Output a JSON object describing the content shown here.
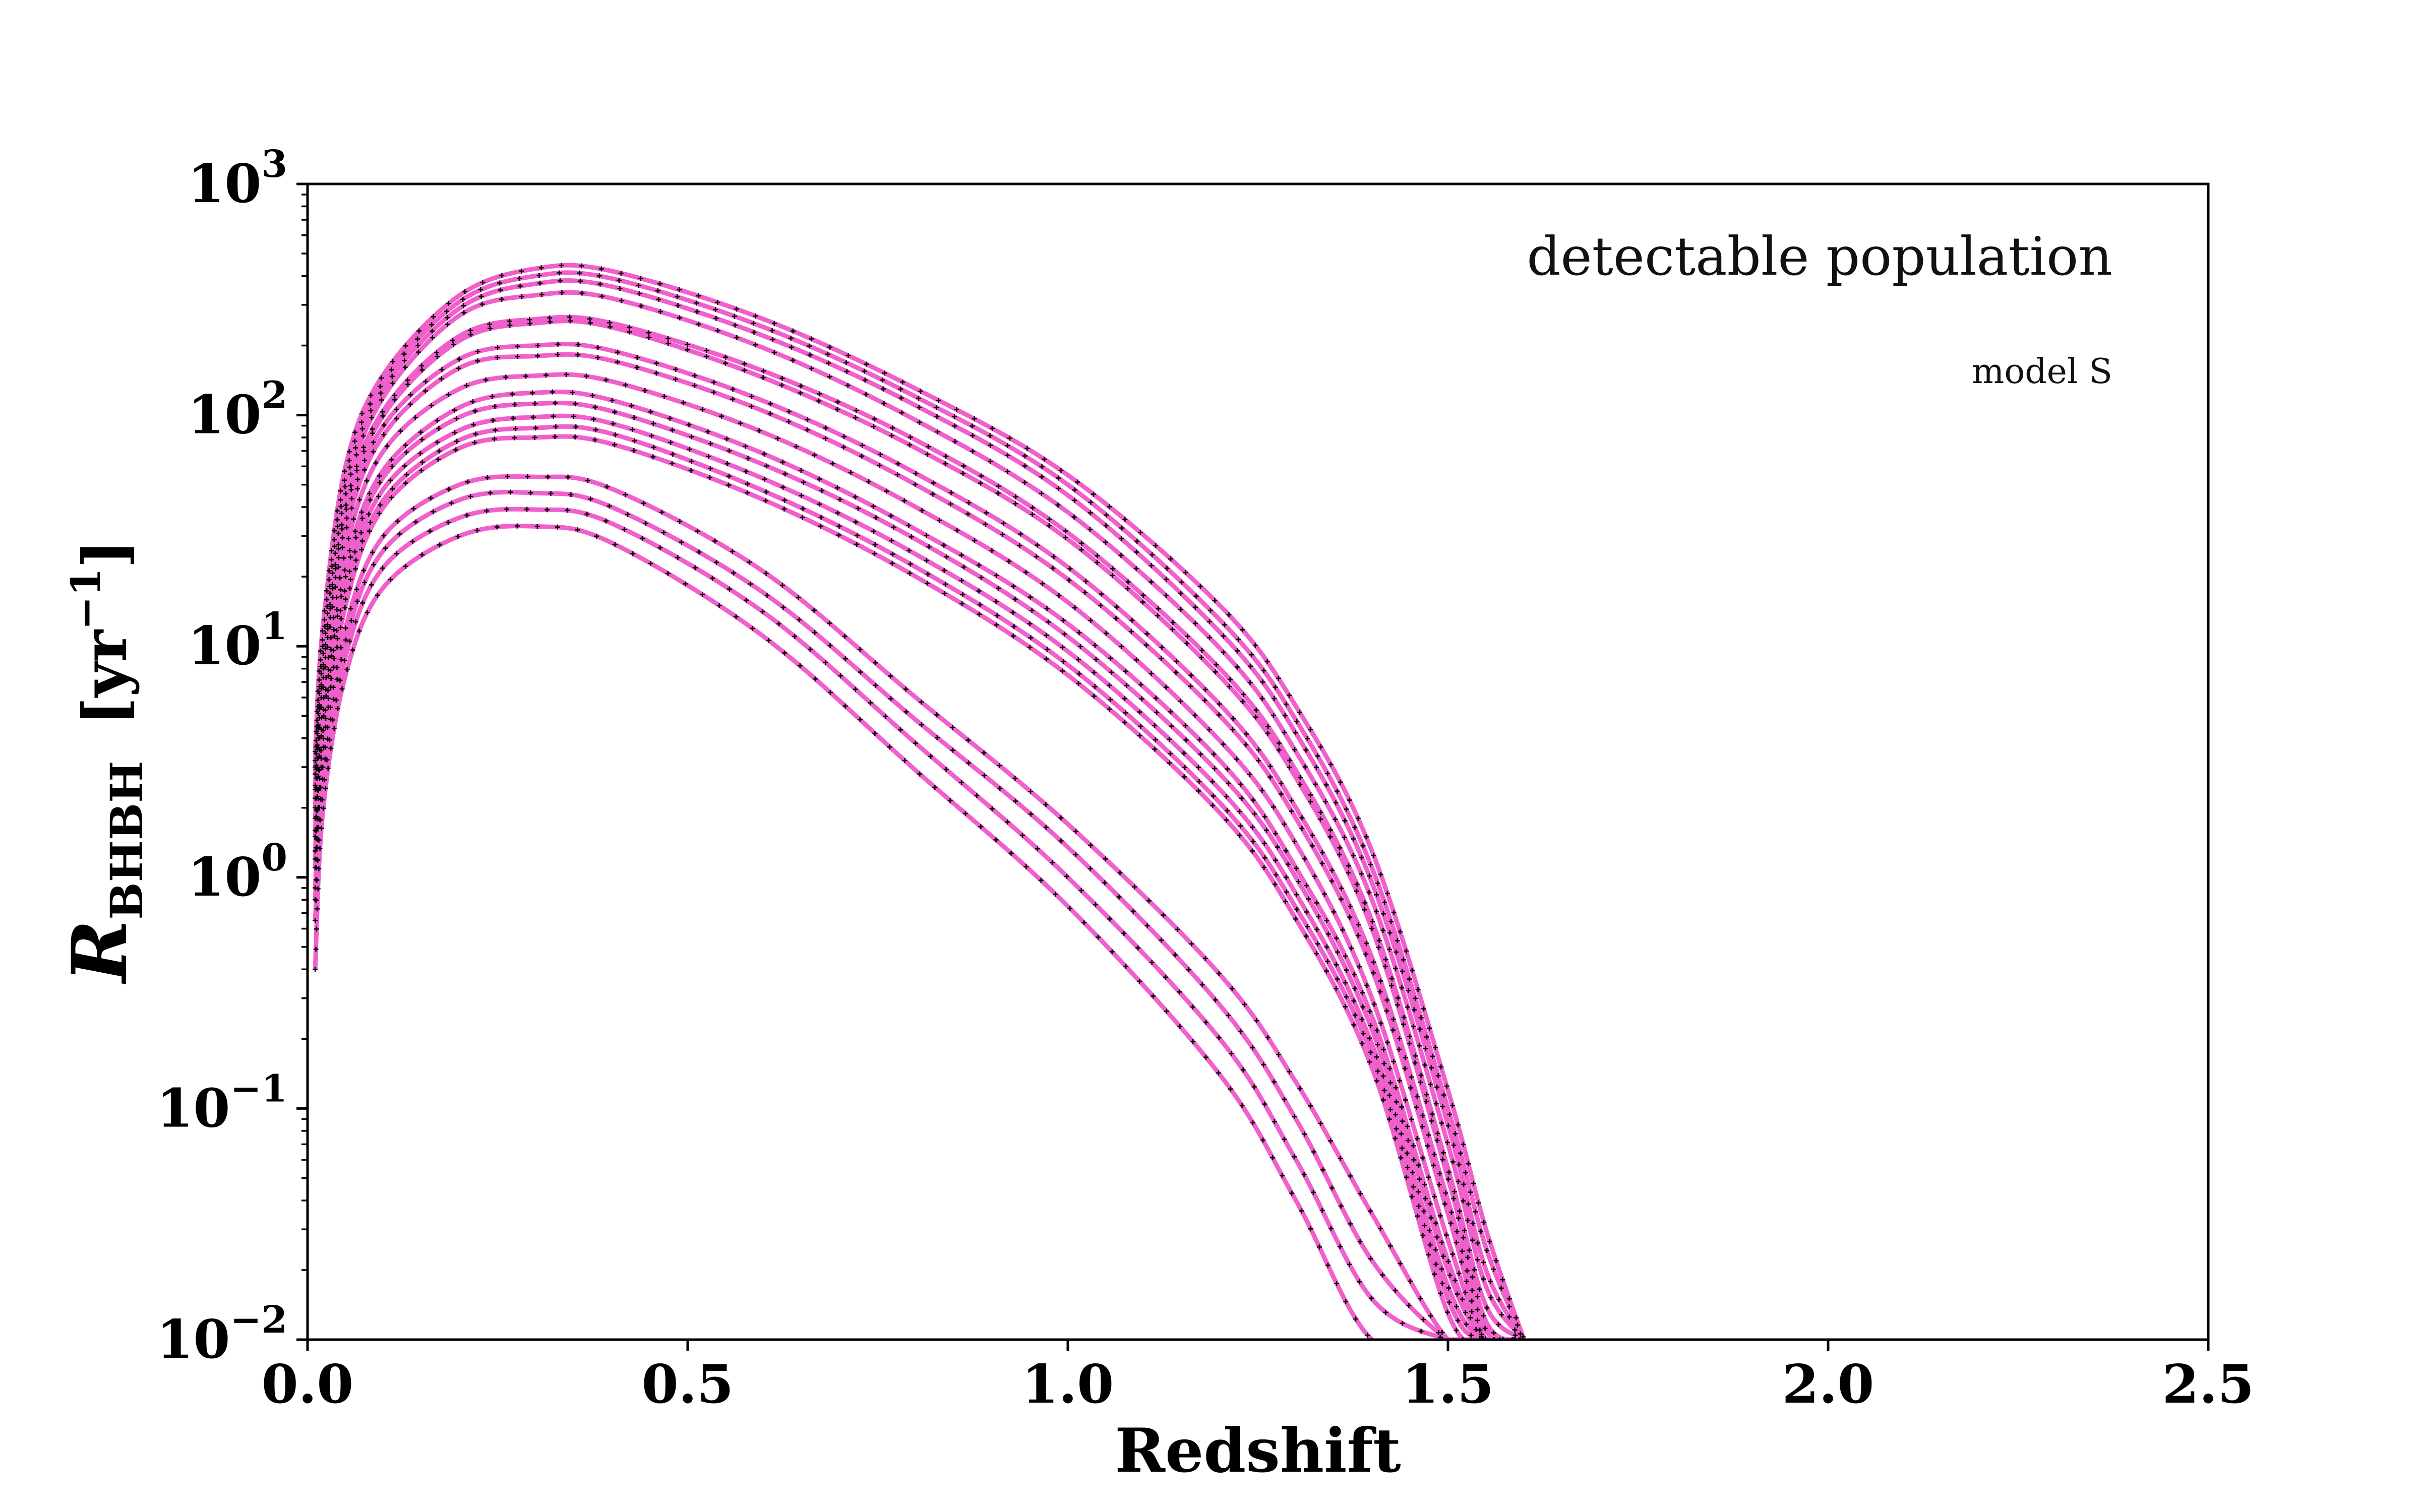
{
  "chart_data": {
    "type": "line",
    "xlabel": "Redshift",
    "ylabel_main": "R",
    "ylabel_sub": "BHBH",
    "ylabel_unit_left": "[yr",
    "ylabel_unit_sup": "−1",
    "ylabel_unit_right": "]",
    "xlim": [
      0.0,
      2.5
    ],
    "ylim": [
      0.01,
      1000
    ],
    "yscale": "log",
    "x_ticks": [
      {
        "value": 0.0,
        "label": "0.0"
      },
      {
        "value": 0.5,
        "label": "0.5"
      },
      {
        "value": 1.0,
        "label": "1.0"
      },
      {
        "value": 1.5,
        "label": "1.5"
      },
      {
        "value": 2.0,
        "label": "2.0"
      },
      {
        "value": 2.5,
        "label": "2.5"
      }
    ],
    "y_ticks": [
      {
        "value": 1000,
        "base": "10",
        "exp": "3"
      },
      {
        "value": 100,
        "base": "10",
        "exp": "2"
      },
      {
        "value": 10,
        "base": "10",
        "exp": "1"
      },
      {
        "value": 1,
        "base": "10",
        "exp": "0"
      },
      {
        "value": 0.1,
        "base": "10",
        "exp": "−1"
      },
      {
        "value": 0.01,
        "base": "10",
        "exp": "−2"
      }
    ],
    "annotations": {
      "title": "detectable population",
      "subtitle": "model S"
    },
    "line_color": "#f060cc",
    "marker_color": "#000000",
    "x": [
      0.01,
      0.02,
      0.05,
      0.1,
      0.2,
      0.3,
      0.4,
      0.6,
      0.8,
      1.0,
      1.2,
      1.3,
      1.4,
      1.5,
      1.55,
      1.6
    ],
    "series": [
      {
        "values": [
          3.5,
          12,
          60,
          150,
          330,
          430,
          420,
          260,
          130,
          55,
          15,
          5.5,
          1.3,
          0.12,
          0.03,
          0.01
        ]
      },
      {
        "values": [
          3.2,
          11,
          55,
          140,
          310,
          400,
          390,
          240,
          120,
          50,
          13,
          4.8,
          1.1,
          0.1,
          0.025,
          0.01
        ]
      },
      {
        "values": [
          3.0,
          10,
          50,
          130,
          290,
          370,
          360,
          220,
          110,
          45,
          11.5,
          4.2,
          0.95,
          0.085,
          0.02,
          0.01
        ]
      },
      {
        "values": [
          2.8,
          9,
          45,
          120,
          270,
          330,
          320,
          195,
          95,
          38,
          9.8,
          3.5,
          0.8,
          0.07,
          0.017,
          0.01
        ]
      },
      {
        "values": [
          2.5,
          8,
          40,
          105,
          220,
          260,
          250,
          155,
          78,
          31,
          8.0,
          2.9,
          0.65,
          0.055,
          0.014,
          0.01
        ]
      },
      {
        "values": [
          2.4,
          7.6,
          38,
          100,
          210,
          250,
          240,
          145,
          72,
          29,
          7.4,
          2.7,
          0.6,
          0.05,
          0.012,
          0.01
        ]
      },
      {
        "values": [
          2.2,
          7,
          34,
          90,
          175,
          200,
          190,
          115,
          56,
          22,
          5.6,
          2.0,
          0.45,
          0.04,
          0.011,
          0.01
        ]
      },
      {
        "values": [
          2.0,
          6.5,
          31,
          82,
          160,
          180,
          172,
          104,
          50,
          19.5,
          5.0,
          1.8,
          0.4,
          0.035,
          0.01,
          0.01
        ]
      },
      {
        "values": [
          1.8,
          5.5,
          26,
          70,
          130,
          148,
          140,
          84,
          40,
          15.5,
          3.9,
          1.4,
          0.3,
          0.027,
          0.01,
          0.01
        ]
      },
      {
        "values": [
          1.6,
          5,
          22,
          58,
          108,
          125,
          116,
          68,
          32,
          12.5,
          3.2,
          1.1,
          0.25,
          0.022,
          0.01,
          0.01
        ]
      },
      {
        "values": [
          1.5,
          4.6,
          20,
          54,
          98,
          112,
          104,
          61,
          29,
          11,
          2.8,
          1.0,
          0.22,
          0.02,
          0.01,
          0.01
        ]
      },
      {
        "values": [
          1.3,
          4.2,
          18,
          48,
          86,
          98,
          92,
          53,
          25,
          9.5,
          2.4,
          0.85,
          0.19,
          0.017,
          0.01,
          0.01
        ]
      },
      {
        "values": [
          1.2,
          3.8,
          16,
          43,
          78,
          88,
          83,
          47,
          22,
          8.3,
          2.1,
          0.74,
          0.17,
          0.015,
          0.01,
          0.01
        ]
      },
      {
        "values": [
          1.1,
          3.5,
          15,
          40,
          72,
          80,
          75,
          43,
          20,
          7.5,
          1.9,
          0.66,
          0.15,
          0.013,
          0.01,
          0.01
        ]
      },
      {
        "values": [
          0.9,
          3.0,
          12,
          30,
          50,
          54,
          48,
          21,
          6.0,
          1.7,
          0.38,
          0.13,
          0.035,
          0.01,
          0.01,
          0.01
        ]
      },
      {
        "values": [
          0.8,
          2.7,
          10.5,
          26,
          43,
          46,
          40,
          17,
          4.8,
          1.35,
          0.28,
          0.09,
          0.022,
          0.01,
          0.01,
          0.01
        ]
      },
      {
        "values": [
          0.65,
          2.3,
          9,
          22,
          36,
          39,
          34,
          14,
          3.8,
          1.0,
          0.2,
          0.06,
          0.015,
          0.01,
          0.01,
          0.01
        ]
      },
      {
        "values": [
          0.4,
          1.9,
          7.5,
          18,
          30,
          33,
          28,
          11,
          2.9,
          0.75,
          0.14,
          0.04,
          0.01,
          0.01,
          0.01,
          0.01
        ]
      }
    ]
  }
}
